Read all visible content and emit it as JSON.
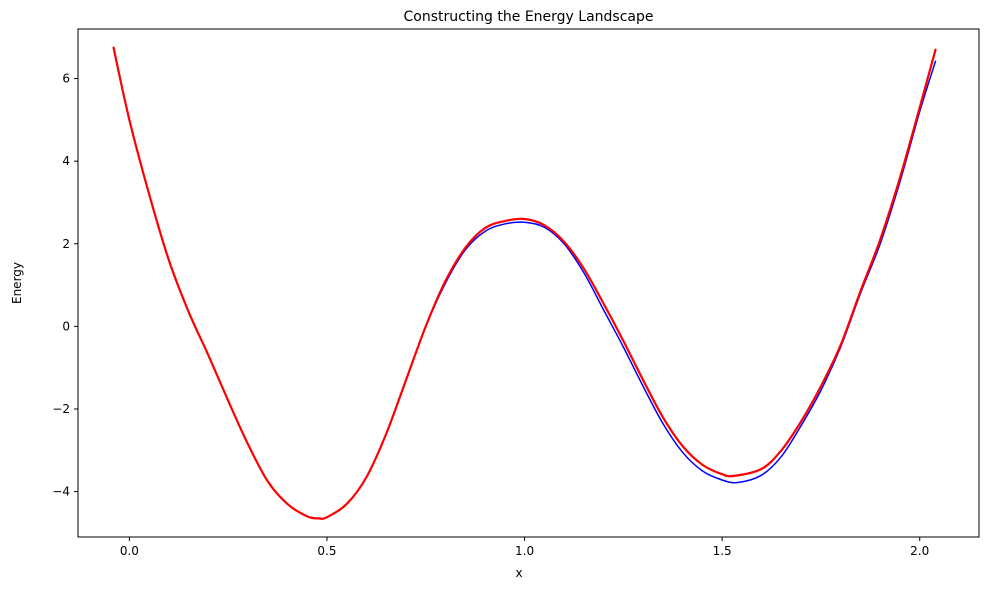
{
  "chart_data": {
    "type": "line",
    "title": "Constructing the Energy Landscape",
    "xlabel": "x",
    "ylabel": "Energy",
    "xlim": [
      -0.13,
      2.15
    ],
    "ylim": [
      -5.1,
      7.2
    ],
    "xticks": [
      0.0,
      0.5,
      1.0,
      1.5,
      2.0
    ],
    "xtick_labels": [
      "0.0",
      "0.5",
      "1.0",
      "1.5",
      "2.0"
    ],
    "yticks": [
      -4,
      -2,
      0,
      2,
      4,
      6
    ],
    "ytick_labels": [
      "−4",
      "−2",
      "0",
      "2",
      "4",
      "6"
    ],
    "grid": false,
    "series": [
      {
        "color": "#0000ff",
        "line_width": "thin",
        "x": [
          -0.04,
          0.0,
          0.05,
          0.1,
          0.15,
          0.2,
          0.25,
          0.3,
          0.35,
          0.4,
          0.45,
          0.48,
          0.5,
          0.55,
          0.6,
          0.65,
          0.7,
          0.75,
          0.8,
          0.85,
          0.9,
          0.95,
          1.0,
          1.05,
          1.1,
          1.15,
          1.2,
          1.25,
          1.3,
          1.35,
          1.4,
          1.45,
          1.5,
          1.54,
          1.6,
          1.65,
          1.7,
          1.75,
          1.8,
          1.85,
          1.9,
          1.95,
          2.0,
          2.04
        ],
        "y": [
          6.72,
          5.0,
          3.2,
          1.6,
          0.35,
          -0.7,
          -1.8,
          -2.85,
          -3.75,
          -4.3,
          -4.6,
          -4.65,
          -4.62,
          -4.3,
          -3.65,
          -2.6,
          -1.3,
          0.0,
          1.05,
          1.85,
          2.3,
          2.48,
          2.52,
          2.4,
          2.0,
          1.3,
          0.4,
          -0.5,
          -1.45,
          -2.35,
          -3.05,
          -3.5,
          -3.72,
          -3.78,
          -3.6,
          -3.15,
          -2.4,
          -1.55,
          -0.5,
          0.8,
          2.0,
          3.5,
          5.2,
          6.42
        ]
      },
      {
        "color": "#ff0000",
        "line_width": "thick",
        "x": [
          -0.04,
          0.0,
          0.05,
          0.1,
          0.15,
          0.2,
          0.25,
          0.3,
          0.35,
          0.4,
          0.45,
          0.48,
          0.5,
          0.55,
          0.6,
          0.65,
          0.7,
          0.75,
          0.8,
          0.85,
          0.9,
          0.95,
          1.0,
          1.05,
          1.1,
          1.15,
          1.2,
          1.25,
          1.3,
          1.35,
          1.4,
          1.45,
          1.5,
          1.53,
          1.6,
          1.65,
          1.7,
          1.75,
          1.8,
          1.85,
          1.9,
          1.95,
          2.0,
          2.04
        ],
        "y": [
          6.75,
          5.0,
          3.2,
          1.6,
          0.35,
          -0.7,
          -1.8,
          -2.85,
          -3.75,
          -4.3,
          -4.6,
          -4.65,
          -4.62,
          -4.3,
          -3.65,
          -2.6,
          -1.3,
          0.0,
          1.1,
          1.9,
          2.38,
          2.55,
          2.6,
          2.45,
          2.05,
          1.4,
          0.55,
          -0.35,
          -1.3,
          -2.2,
          -2.9,
          -3.35,
          -3.58,
          -3.62,
          -3.45,
          -3.0,
          -2.3,
          -1.45,
          -0.45,
          0.85,
          2.1,
          3.6,
          5.3,
          6.7
        ]
      }
    ]
  }
}
